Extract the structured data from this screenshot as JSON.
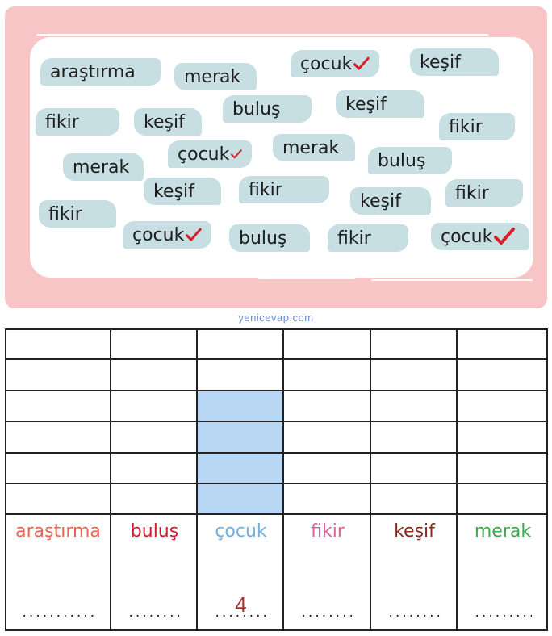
{
  "word_cloud": {
    "chips": [
      {
        "text": "araştırma",
        "checked": false
      },
      {
        "text": "merak",
        "checked": false
      },
      {
        "text": "çocuk",
        "checked": true
      },
      {
        "text": "keşif",
        "checked": false
      },
      {
        "text": "fikir",
        "checked": false
      },
      {
        "text": "keşif",
        "checked": false
      },
      {
        "text": "buluş",
        "checked": false
      },
      {
        "text": "keşif",
        "checked": false
      },
      {
        "text": "fikir",
        "checked": false
      },
      {
        "text": "merak",
        "checked": false
      },
      {
        "text": "çocuk",
        "checked": true
      },
      {
        "text": "merak",
        "checked": false
      },
      {
        "text": "buluş",
        "checked": false
      },
      {
        "text": "keşif",
        "checked": false
      },
      {
        "text": "fikir",
        "checked": false
      },
      {
        "text": "keşif",
        "checked": false
      },
      {
        "text": "fikir",
        "checked": false
      },
      {
        "text": "fikir",
        "checked": false
      },
      {
        "text": "çocuk",
        "checked": true
      },
      {
        "text": "buluş",
        "checked": false
      },
      {
        "text": "fikir",
        "checked": false
      },
      {
        "text": "çocuk",
        "checked": true
      }
    ],
    "check_color": "#d9202a"
  },
  "watermark": "yenicevap.com",
  "table": {
    "rows": 6,
    "highlight_color": "#b7d7f4",
    "columns": [
      {
        "label": "araştırma",
        "color": "#e8664f",
        "answer": "",
        "filled": 0
      },
      {
        "label": "buluş",
        "color": "#c8232c",
        "answer": "",
        "filled": 0
      },
      {
        "label": "çocuk",
        "color": "#6fb1e0",
        "answer": "4",
        "filled": 4
      },
      {
        "label": "fikir",
        "color": "#e0609a",
        "answer": "",
        "filled": 0
      },
      {
        "label": "keşif",
        "color": "#8a2a1c",
        "answer": "",
        "filled": 0
      },
      {
        "label": "merak",
        "color": "#3ea84a",
        "answer": "",
        "filled": 0
      }
    ],
    "dots": "..................."
  }
}
